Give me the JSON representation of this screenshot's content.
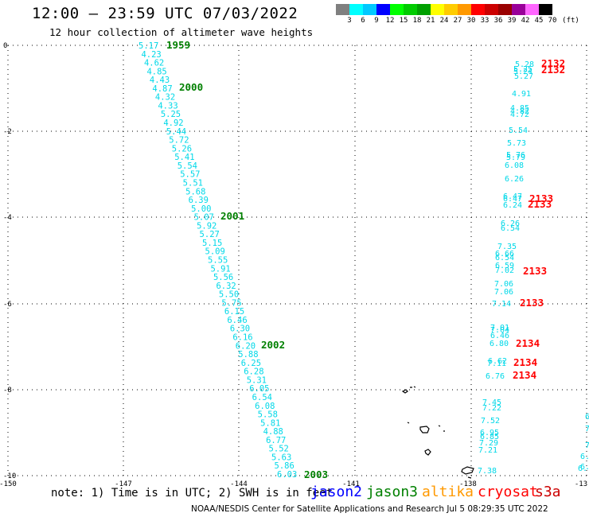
{
  "header": {
    "title": "12:00 – 23:59 UTC 07/03/2022",
    "subtitle": "12 hour collection of altimeter wave heights"
  },
  "colorbar": {
    "colors": [
      "#7f7f7f",
      "#00ffff",
      "#00c8ff",
      "#0000ff",
      "#00ff00",
      "#00cc00",
      "#00a000",
      "#ffff00",
      "#ffcc00",
      "#ff9900",
      "#ff0000",
      "#cc0000",
      "#990000",
      "#990099",
      "#ff66ff",
      "#000000"
    ],
    "labels": [
      "3",
      "6",
      "9",
      "12",
      "15",
      "18",
      "21",
      "24",
      "27",
      "30",
      "33",
      "36",
      "39",
      "42",
      "45",
      "70",
      "(ft)"
    ]
  },
  "axes": {
    "xticks": [
      "-150",
      "-147",
      "-144",
      "-141",
      "-138",
      "-13"
    ],
    "yticks": [
      "0",
      "-2",
      "-4",
      "-6",
      "-8",
      "-10"
    ]
  },
  "tracks": {
    "jason3_values": [
      "5.17",
      "4.23",
      "4.62",
      "4.85",
      "4.43",
      "4.87",
      "4.32",
      "4.33",
      "5.25",
      "4.92",
      "5.44",
      "5.72",
      "5.26",
      "5.41",
      "5.54",
      "5.57",
      "5.51",
      "5.68",
      "6.39",
      "5.00",
      "5.07",
      "5.92",
      "5.27",
      "5.15",
      "5.09",
      "5.55",
      "5.91",
      "5.56",
      "6.32",
      "5.50",
      "5.75",
      "6.15",
      "6.46",
      "6.30",
      "6.16",
      "6.20",
      "5.88",
      "6.25",
      "6.28",
      "5.31",
      "6.05",
      "6.54",
      "6.08",
      "5.58",
      "5.81",
      "4.88",
      "6.77",
      "5.52",
      "5.63",
      "5.86",
      "6.03"
    ],
    "jason3_times": [
      "1959",
      "2000",
      "2001",
      "2002",
      "2003"
    ],
    "cryosat_values": [
      "5.28",
      "5.25",
      "5.24",
      "5.27",
      "4.91",
      "4.85",
      "4.82",
      "4.72",
      "5.54",
      "5.73",
      "5.76",
      "5.79",
      "6.08",
      "6.26",
      "6.47",
      "6.47",
      "6.24",
      "6.26",
      "6.54",
      "7.35",
      "6.66",
      "6.54",
      "6.59",
      "7.02",
      "7.06",
      "7.06",
      "7.14",
      "7.01",
      "7.04",
      "6.46",
      "6.80",
      "6.62",
      "7.11",
      "6.76"
    ],
    "cryosat_times": [
      "2132",
      "2132",
      "2133",
      "2133",
      "2133",
      "2133",
      "2134",
      "2134",
      "2134"
    ],
    "east_values": [
      "7.45",
      "7.22",
      "7.52",
      "6.95",
      "6.85",
      "7.29",
      "7.21",
      "7.38"
    ],
    "edge_values": [
      "6",
      "7",
      "7",
      "6.",
      "6.",
      "6."
    ]
  },
  "legend": {
    "note": "note: 1) Time is in UTC; 2) SWH is in feet",
    "satellites": [
      {
        "name": "jason2",
        "color": "#0000ff"
      },
      {
        "name": "jason3",
        "color": "#008000"
      },
      {
        "name": "altika",
        "color": "#ff9900"
      },
      {
        "name": "cryosat",
        "color": "#ff0000"
      },
      {
        "name": "s3a",
        "color": "#cc0000"
      }
    ]
  },
  "footer": "NOAA/NESDIS Center for Satellite Applications and Research   Jul  5 08:29:35 UTC 2022"
}
